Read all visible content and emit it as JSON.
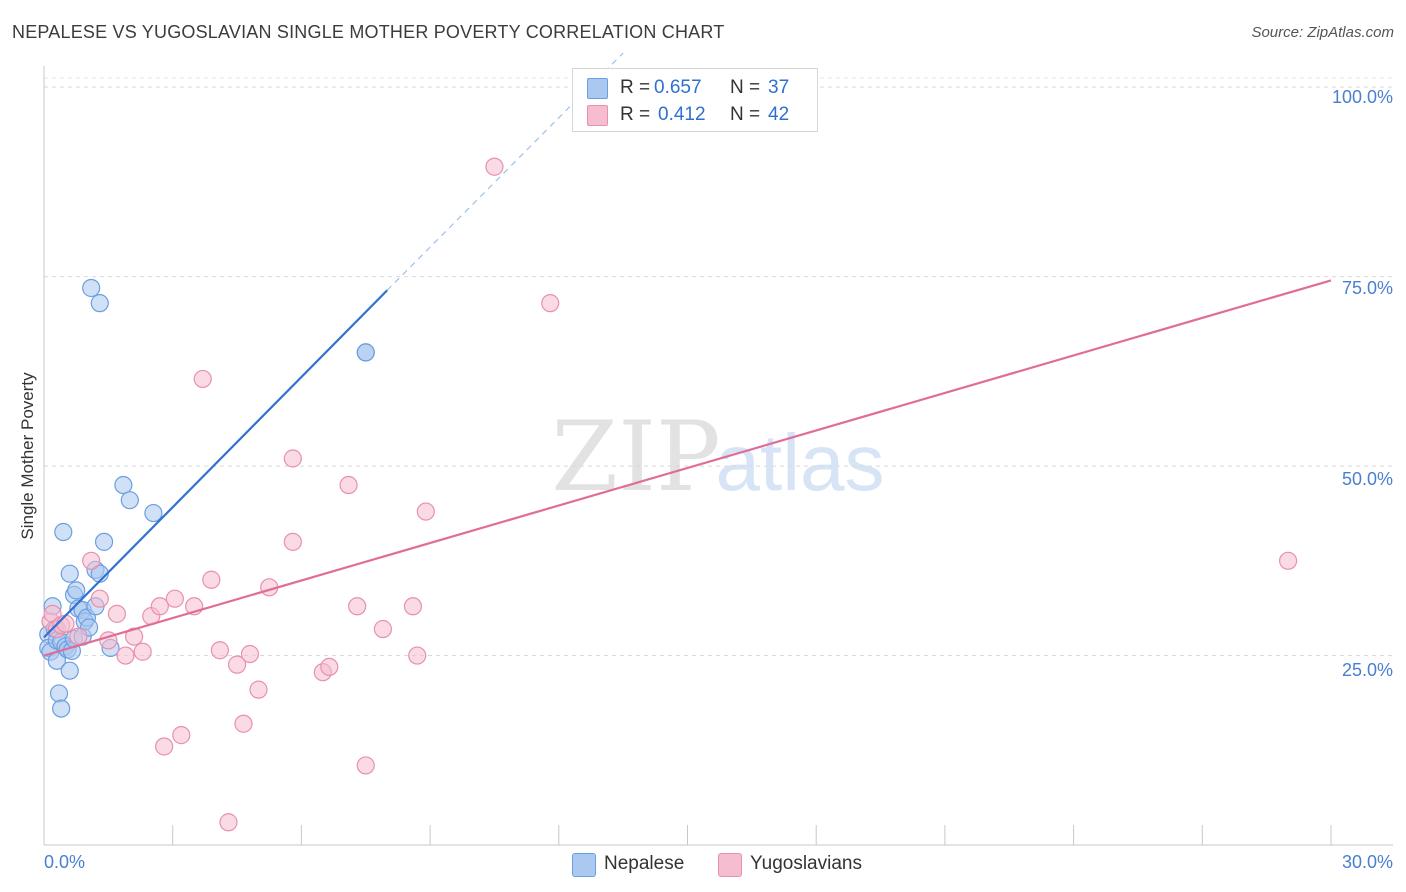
{
  "header": {
    "title": "NEPALESE VS YUGOSLAVIAN SINGLE MOTHER POVERTY CORRELATION CHART",
    "source": "Source: ZipAtlas.com"
  },
  "stats": [
    {
      "r_label": "R =",
      "r_value": "0.657",
      "n_label": "N =",
      "n_value": "37"
    },
    {
      "r_label": "R =",
      "r_value": "0.412",
      "n_label": "N =",
      "n_value": "42"
    }
  ],
  "legend": {
    "items": [
      "Nepalese",
      "Yugoslavians"
    ]
  },
  "watermark": {
    "zip": "ZIP",
    "atlas": "atlas"
  },
  "colors": {
    "nepalese_fill": "#aac8f0",
    "nepalese_stroke": "#6c9ee0",
    "nepalese_line": "#2f72d1",
    "yugoslavian_fill": "#f6bcd0",
    "yugoslavian_stroke": "#e890ae",
    "yugoslavian_line": "#e06d98",
    "tick_label": "#4a7fd0"
  },
  "chart_data": {
    "type": "scatter",
    "title": "NEPALESE VS YUGOSLAVIAN SINGLE MOTHER POVERTY CORRELATION CHART",
    "xlabel": "",
    "ylabel": "Single Mother Poverty",
    "xlim": [
      0,
      30
    ],
    "ylim": [
      0,
      102
    ],
    "x_tick_labels": [
      "0.0%",
      "30.0%"
    ],
    "y_ticks": [
      25,
      50,
      75,
      100
    ],
    "y_tick_labels": [
      "25.0%",
      "50.0%",
      "75.0%",
      "100.0%"
    ],
    "grid": "horizontal dashed",
    "legend_position": "bottom-center",
    "series": [
      {
        "name": "Nepalese",
        "r": 0.657,
        "n": 37,
        "trend": {
          "x0": 0,
          "y0": 27.4,
          "x1": 8.0,
          "y1": 73.2,
          "dash_to_x": 13.5,
          "dash_to_y": 104.5
        },
        "points": [
          [
            0.1,
            27.8
          ],
          [
            0.1,
            26.0
          ],
          [
            0.15,
            25.5
          ],
          [
            0.2,
            31.5
          ],
          [
            0.25,
            28.5
          ],
          [
            0.3,
            24.3
          ],
          [
            0.3,
            27.0
          ],
          [
            0.35,
            20.0
          ],
          [
            0.4,
            18.0
          ],
          [
            0.4,
            26.8
          ],
          [
            0.45,
            41.3
          ],
          [
            0.5,
            26.2
          ],
          [
            0.55,
            25.8
          ],
          [
            0.6,
            23.0
          ],
          [
            0.6,
            35.8
          ],
          [
            0.65,
            25.6
          ],
          [
            0.7,
            27.2
          ],
          [
            0.7,
            33.0
          ],
          [
            0.75,
            33.6
          ],
          [
            0.8,
            31.2
          ],
          [
            0.9,
            27.5
          ],
          [
            0.9,
            31.0
          ],
          [
            0.95,
            29.5
          ],
          [
            1.0,
            30.0
          ],
          [
            1.05,
            28.7
          ],
          [
            1.1,
            73.5
          ],
          [
            1.2,
            36.3
          ],
          [
            1.2,
            31.5
          ],
          [
            1.3,
            71.5
          ],
          [
            1.3,
            35.8
          ],
          [
            1.4,
            40.0
          ],
          [
            1.55,
            26.0
          ],
          [
            1.85,
            47.5
          ],
          [
            2.0,
            45.5
          ],
          [
            2.55,
            43.8
          ],
          [
            7.5,
            65.0
          ],
          [
            7.5,
            65.0
          ]
        ]
      },
      {
        "name": "Yugoslavians",
        "r": 0.412,
        "n": 42,
        "trend": {
          "x0": 0,
          "y0": 25.0,
          "x1": 30,
          "y1": 74.5
        },
        "points": [
          [
            0.15,
            29.5
          ],
          [
            0.2,
            30.5
          ],
          [
            0.3,
            28.5
          ],
          [
            0.4,
            29.0
          ],
          [
            0.5,
            29.2
          ],
          [
            0.8,
            27.5
          ],
          [
            1.1,
            37.5
          ],
          [
            1.3,
            32.5
          ],
          [
            1.5,
            27.0
          ],
          [
            1.7,
            30.5
          ],
          [
            1.9,
            25.0
          ],
          [
            2.1,
            27.5
          ],
          [
            2.3,
            25.5
          ],
          [
            2.5,
            30.2
          ],
          [
            2.7,
            31.5
          ],
          [
            2.8,
            13.0
          ],
          [
            3.05,
            32.5
          ],
          [
            3.2,
            14.5
          ],
          [
            3.5,
            31.5
          ],
          [
            3.7,
            61.5
          ],
          [
            3.9,
            35.0
          ],
          [
            4.1,
            25.7
          ],
          [
            4.3,
            3.0
          ],
          [
            4.5,
            23.8
          ],
          [
            4.65,
            16.0
          ],
          [
            4.8,
            25.2
          ],
          [
            5.0,
            20.5
          ],
          [
            5.25,
            34.0
          ],
          [
            5.8,
            40.0
          ],
          [
            5.8,
            51.0
          ],
          [
            6.5,
            22.8
          ],
          [
            6.65,
            23.5
          ],
          [
            7.1,
            47.5
          ],
          [
            7.3,
            31.5
          ],
          [
            7.5,
            10.5
          ],
          [
            7.9,
            28.5
          ],
          [
            8.6,
            31.5
          ],
          [
            8.7,
            25.0
          ],
          [
            8.9,
            44.0
          ],
          [
            10.5,
            89.5
          ],
          [
            11.8,
            71.5
          ],
          [
            29.0,
            37.5
          ]
        ]
      }
    ]
  }
}
